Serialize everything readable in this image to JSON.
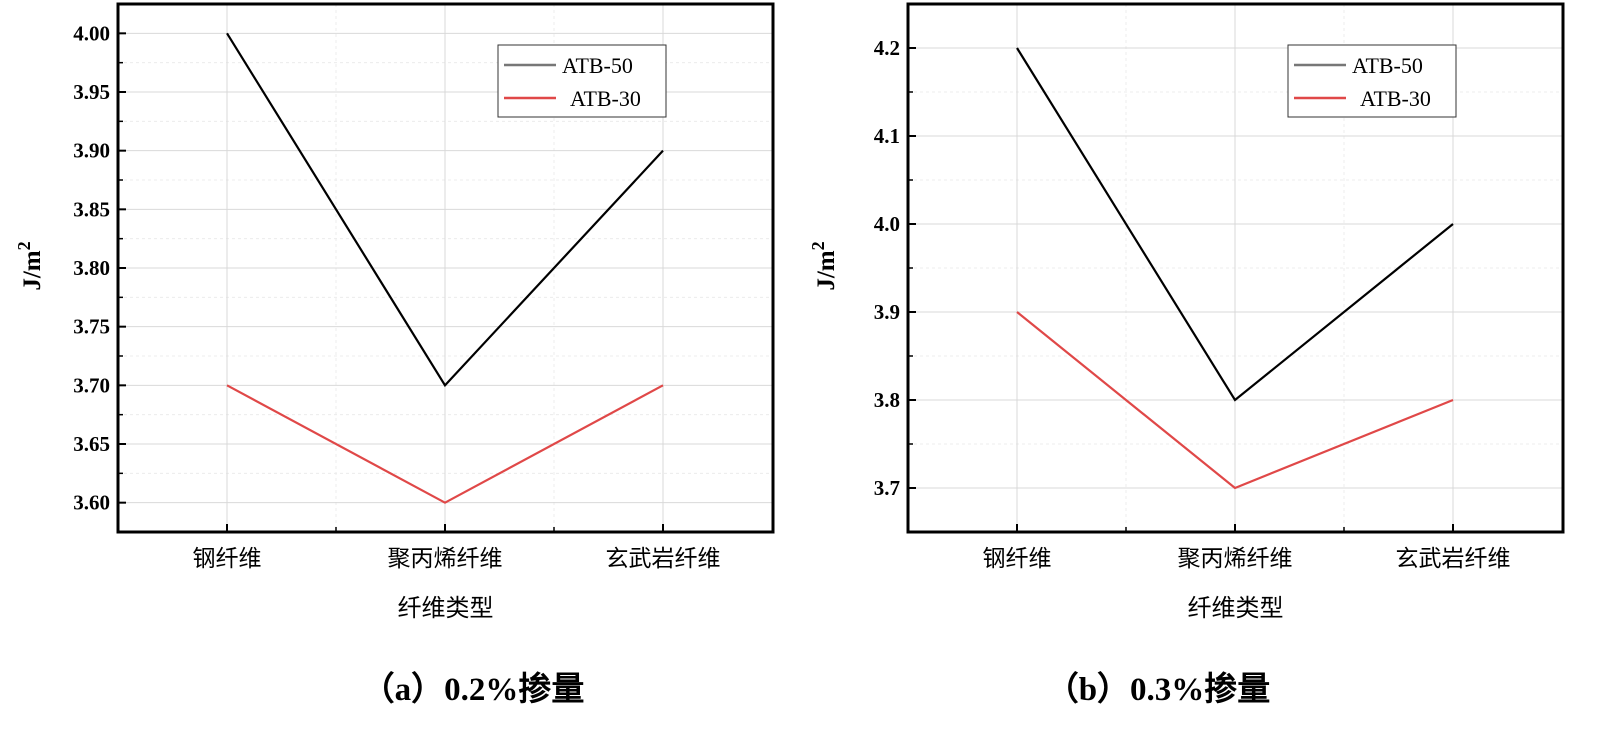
{
  "chart_data": [
    {
      "type": "line",
      "title": "（a）0.2%掺量",
      "xlabel": "纤维类型",
      "ylabel": "J/m",
      "ylabel_sup": "2",
      "categories": [
        "钢纤维",
        "聚丙烯纤维",
        "玄武岩纤维"
      ],
      "ylim": [
        3.575,
        4.025
      ],
      "yticks": [
        "3.60",
        "3.65",
        "3.70",
        "3.75",
        "3.80",
        "3.85",
        "3.90",
        "3.95",
        "4.00"
      ],
      "grid": true,
      "legend_position": "top-right",
      "series": [
        {
          "name": "ATB-50",
          "color": "#000000",
          "values": [
            4.0,
            3.7,
            3.9
          ]
        },
        {
          "name": "ATB-30",
          "color": "#e04848",
          "values": [
            3.7,
            3.6,
            3.7
          ]
        }
      ]
    },
    {
      "type": "line",
      "title": "（b）0.3%掺量",
      "xlabel": "纤维类型",
      "ylabel": "J/m",
      "ylabel_sup": "2",
      "categories": [
        "钢纤维",
        "聚丙烯纤维",
        "玄武岩纤维"
      ],
      "ylim": [
        3.65,
        4.25
      ],
      "yticks": [
        "3.7",
        "3.8",
        "3.9",
        "4.0",
        "4.1",
        "4.2"
      ],
      "grid": true,
      "legend_position": "top-right",
      "series": [
        {
          "name": "ATB-50",
          "color": "#000000",
          "values": [
            4.2,
            3.8,
            4.0
          ]
        },
        {
          "name": "ATB-30",
          "color": "#e04848",
          "values": [
            3.9,
            3.7,
            3.8
          ]
        }
      ]
    }
  ]
}
